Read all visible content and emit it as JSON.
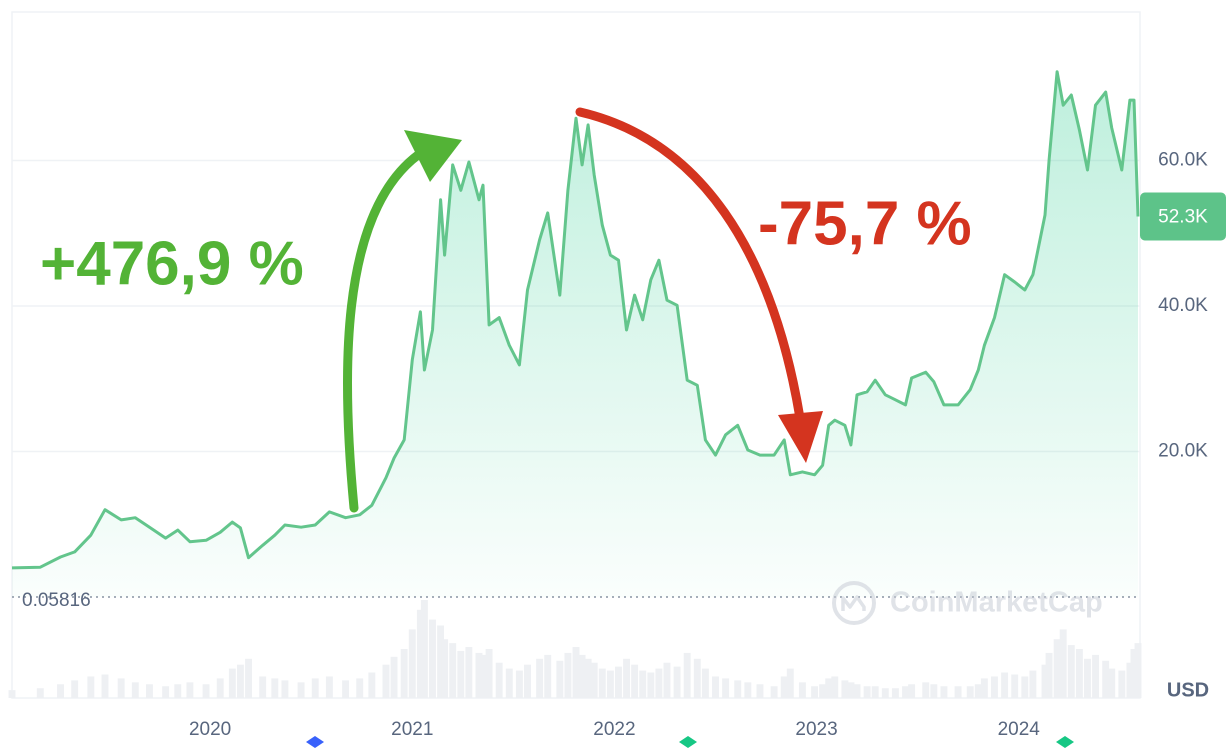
{
  "chart_data": {
    "type": "area",
    "color": "#63c58c",
    "volume_color": "#eef0f3",
    "x": [
      2019.02,
      2019.16,
      2019.26,
      2019.33,
      2019.41,
      2019.48,
      2019.56,
      2019.63,
      2019.7,
      2019.78,
      2019.84,
      2019.9,
      2019.98,
      2020.05,
      2020.11,
      2020.15,
      2020.19,
      2020.26,
      2020.32,
      2020.37,
      2020.45,
      2020.52,
      2020.59,
      2020.67,
      2020.74,
      2020.8,
      2020.87,
      2020.91,
      2020.96,
      2021.0,
      2021.04,
      2021.06,
      2021.1,
      2021.14,
      2021.16,
      2021.2,
      2021.24,
      2021.28,
      2021.33,
      2021.35,
      2021.38,
      2021.43,
      2021.48,
      2021.53,
      2021.57,
      2021.63,
      2021.67,
      2021.73,
      2021.77,
      2021.81,
      2021.84,
      2021.87,
      2021.9,
      2021.94,
      2021.98,
      2022.02,
      2022.06,
      2022.1,
      2022.14,
      2022.18,
      2022.22,
      2022.26,
      2022.31,
      2022.36,
      2022.41,
      2022.45,
      2022.5,
      2022.55,
      2022.61,
      2022.66,
      2022.72,
      2022.79,
      2022.84,
      2022.87,
      2022.93,
      2022.99,
      2023.03,
      2023.06,
      2023.09,
      2023.14,
      2023.17,
      2023.2,
      2023.25,
      2023.29,
      2023.34,
      2023.39,
      2023.44,
      2023.47,
      2023.54,
      2023.58,
      2023.63,
      2023.7,
      2023.76,
      2023.8,
      2023.83,
      2023.88,
      2023.93,
      2023.98,
      2024.03,
      2024.07,
      2024.13,
      2024.15,
      2024.19,
      2024.22,
      2024.26,
      2024.3,
      2024.34,
      2024.38,
      2024.43,
      2024.46,
      2024.51,
      2024.55,
      2024.57,
      2024.59
    ],
    "values": [
      4000,
      4100,
      5500,
      6200,
      8500,
      12000,
      10600,
      10900,
      9600,
      8100,
      9200,
      7600,
      7800,
      8900,
      10300,
      9500,
      5400,
      7100,
      8500,
      9900,
      9600,
      9900,
      11700,
      10900,
      11300,
      12600,
      16400,
      19100,
      21600,
      32600,
      39200,
      31200,
      36700,
      54600,
      47000,
      59400,
      55900,
      59800,
      54600,
      56600,
      37400,
      38400,
      34600,
      31900,
      42200,
      49100,
      52800,
      41500,
      55900,
      65800,
      59400,
      64900,
      58000,
      51100,
      47000,
      46300,
      36700,
      41500,
      38100,
      43600,
      46300,
      40800,
      40100,
      29800,
      29100,
      21600,
      19500,
      22300,
      23600,
      20200,
      19500,
      19500,
      21600,
      16800,
      17200,
      16800,
      18100,
      23600,
      24300,
      23600,
      20900,
      27800,
      28200,
      29800,
      27800,
      27100,
      26400,
      30100,
      30900,
      29600,
      26400,
      26400,
      28500,
      31200,
      34600,
      38400,
      44300,
      43300,
      42200,
      44300,
      52500,
      60100,
      72200,
      67600,
      69000,
      64200,
      58700,
      67600,
      69400,
      64500,
      58700,
      68300,
      68300,
      52300
    ],
    "volume": [
      8,
      10,
      14,
      18,
      22,
      24,
      20,
      16,
      14,
      12,
      14,
      16,
      14,
      20,
      30,
      34,
      40,
      22,
      20,
      18,
      16,
      20,
      22,
      18,
      20,
      26,
      34,
      42,
      50,
      70,
      90,
      100,
      80,
      74,
      60,
      56,
      48,
      52,
      46,
      44,
      50,
      36,
      30,
      28,
      34,
      40,
      44,
      38,
      46,
      52,
      44,
      40,
      36,
      30,
      28,
      32,
      40,
      34,
      28,
      26,
      30,
      36,
      32,
      46,
      40,
      30,
      22,
      20,
      18,
      16,
      14,
      12,
      22,
      30,
      16,
      12,
      14,
      20,
      22,
      18,
      16,
      14,
      12,
      12,
      10,
      10,
      12,
      14,
      16,
      14,
      12,
      12,
      12,
      14,
      20,
      22,
      26,
      24,
      22,
      28,
      34,
      46,
      60,
      70,
      54,
      50,
      40,
      44,
      38,
      30,
      28,
      36,
      50,
      56
    ],
    "xlim": [
      2019.02,
      2024.59
    ],
    "ylim": [
      0,
      80000
    ],
    "xticks": [
      2020,
      2021,
      2022,
      2023,
      2024
    ],
    "yticks": [
      {
        "value": 20000,
        "label": "20.0K"
      },
      {
        "value": 40000,
        "label": "40.0K"
      },
      {
        "value": 60000,
        "label": "60.0K"
      }
    ],
    "grid": true,
    "baseline": 0.05816,
    "current_price": {
      "value": 52300,
      "label": "52.3K"
    },
    "currency": "USD",
    "watermark": "CoinMarketCap",
    "annotations": [
      {
        "text": "+476,9 %",
        "color": "#53b336"
      },
      {
        "text": "-75,7 %",
        "color": "#d4341f"
      }
    ]
  }
}
